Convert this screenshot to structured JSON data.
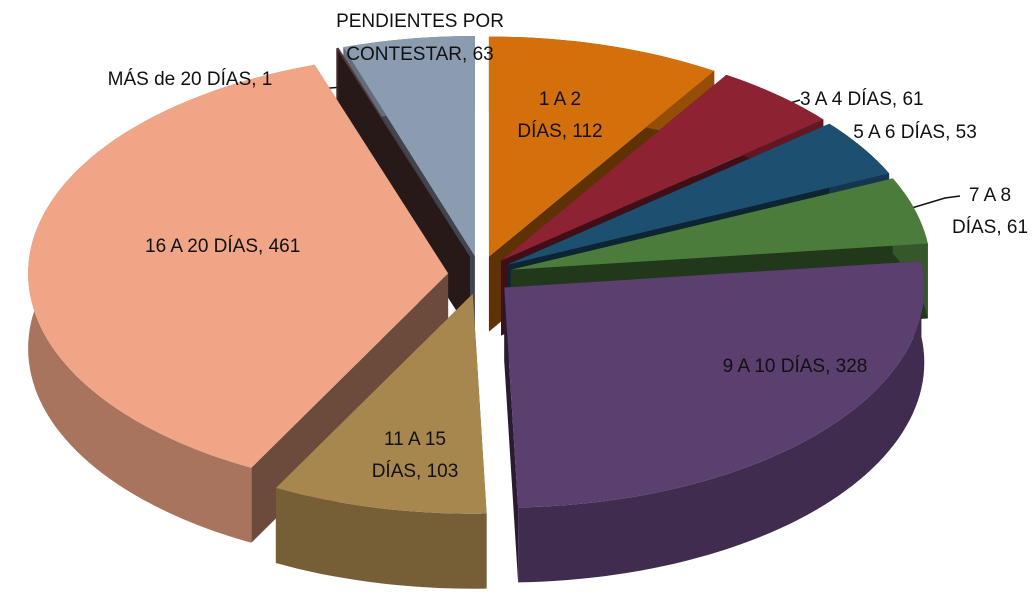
{
  "chart_data": {
    "type": "pie",
    "values": [
      112,
      61,
      53,
      61,
      328,
      103,
      461,
      1,
      63
    ],
    "value_labels": [
      "1 A 2 DÍAS, 112",
      "3 A 4 DÍAS, 61",
      "5 A 6 DÍAS, 53",
      "7 A 8 DÍAS, 61",
      "9 A 10 DÍAS, 328",
      "11 A 15 DÍAS, 103",
      "16 A 20 DÍAS, 461",
      "MÁS de 20 DÍAS, 1",
      "PENDIENTES POR CONTESTAR, 63"
    ],
    "colors": [
      "#d4700c",
      "#8c2232",
      "#1d4f70",
      "#4b7c3b",
      "#5a3f6f",
      "#a8874f",
      "#f0a686",
      "#583838",
      "#8b9bb0"
    ]
  }
}
